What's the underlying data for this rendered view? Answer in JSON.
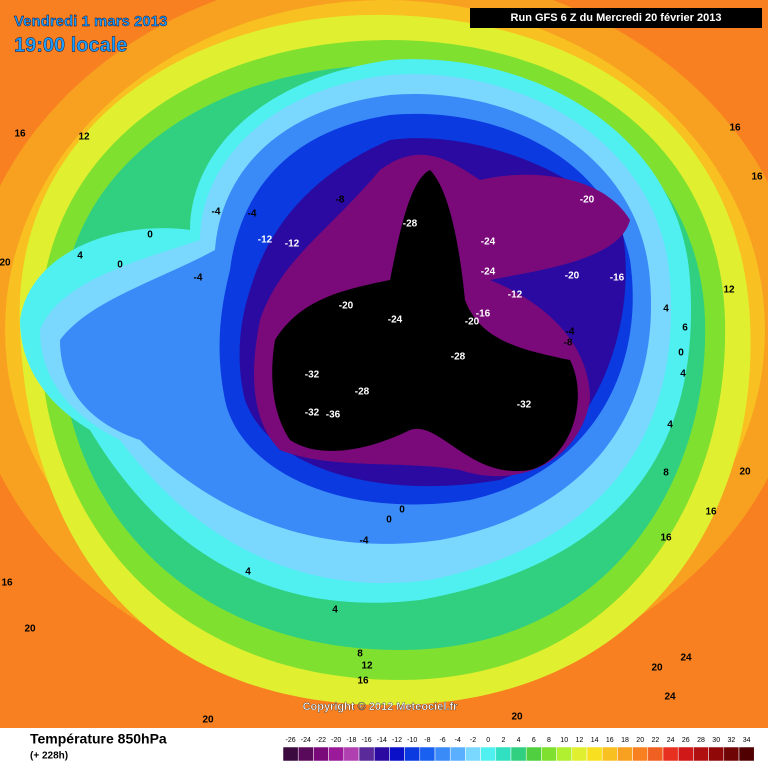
{
  "header": {
    "date": "Vendredi 1 mars 2013",
    "time": "19:00 locale",
    "run": "Run GFS 6 Z du Mercredi 20 février 2013"
  },
  "copyright": "Copyright © 2012 Meteociel.fr",
  "footer": {
    "title": "Température 850hPa",
    "lead": "(+ 228h)"
  },
  "colorbar": {
    "values": [
      -26,
      -24,
      -22,
      -20,
      -18,
      -16,
      -14,
      -12,
      -10,
      -8,
      -6,
      -4,
      -2,
      0,
      2,
      4,
      6,
      8,
      10,
      12,
      14,
      16,
      18,
      20,
      22,
      24,
      26,
      28,
      30,
      32,
      34
    ],
    "colors": [
      "#3b0a3f",
      "#5a0a5a",
      "#7a0a7a",
      "#9a1a9a",
      "#b040b0",
      "#5a2a9a",
      "#2a0aa0",
      "#0a10c8",
      "#0a3ae0",
      "#1a60f0",
      "#3a8af8",
      "#5ab0ff",
      "#7ad8ff",
      "#50f0f0",
      "#30e0c0",
      "#30d080",
      "#50d040",
      "#80e030",
      "#b0f030",
      "#e0f030",
      "#f8e020",
      "#f8c020",
      "#f8a020",
      "#f88020",
      "#f06020",
      "#e83020",
      "#d01818",
      "#b01010",
      "#900808",
      "#700505",
      "#500000"
    ]
  },
  "map": {
    "labels": [
      16,
      12,
      16,
      16,
      20,
      12,
      -4,
      -4,
      0,
      4,
      0,
      -4,
      -12,
      -12,
      -8,
      -28,
      -24,
      -20,
      -24,
      -20,
      -16,
      -12,
      -16,
      -20,
      -20,
      -24,
      -28,
      -32,
      -28,
      -32,
      -36,
      -32,
      -4,
      -8,
      4,
      6,
      0,
      4,
      4,
      8,
      20,
      16,
      16,
      0,
      0,
      -4,
      4,
      16,
      20,
      4,
      8,
      12,
      16,
      20,
      20,
      20,
      24,
      24
    ]
  }
}
